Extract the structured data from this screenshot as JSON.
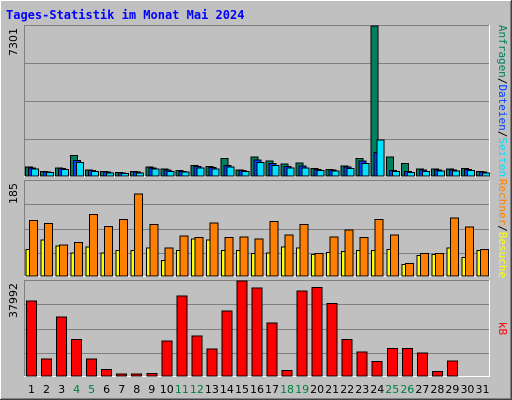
{
  "chart_data": {
    "type": "bar",
    "title": "Tages-Statistik im Monat Mai 2024",
    "categories": [
      "1",
      "2",
      "3",
      "4",
      "5",
      "6",
      "7",
      "8",
      "9",
      "10",
      "11",
      "12",
      "13",
      "14",
      "15",
      "16",
      "17",
      "18",
      "19",
      "20",
      "21",
      "22",
      "23",
      "24",
      "25",
      "26",
      "27",
      "28",
      "29",
      "30",
      "31"
    ],
    "weekend_days": [
      "4",
      "5",
      "11",
      "12",
      "18",
      "19",
      "25",
      "26"
    ],
    "colors": {
      "title": "#0000FF",
      "anfragen": "#008060",
      "dateien": "#0040FF",
      "seiten": "#00E0FF",
      "besuche": "#FFFF00",
      "rechner": "#FF8000",
      "kb": "#FF0000",
      "weekday_tick": "#000000",
      "weekend_tick": "#008040",
      "plot_background": "#C0C0C0",
      "gridline": "#808080"
    },
    "panels": [
      {
        "id": "hits",
        "ymax_label": "7301",
        "ylim": [
          0,
          7301
        ],
        "legend": [
          {
            "text": "Anfragen",
            "color": "#008060"
          },
          {
            "text": "/",
            "color": "#000000"
          },
          {
            "text": "Dateien",
            "color": "#0040FF"
          },
          {
            "text": "/",
            "color": "#000000"
          },
          {
            "text": "Seiten",
            "color": "#00E0FF"
          }
        ],
        "series": [
          {
            "name": "Anfragen",
            "color": "#008060",
            "values": [
              440,
              230,
              400,
              1000,
              300,
              220,
              170,
              230,
              450,
              330,
              270,
              520,
              470,
              860,
              300,
              920,
              730,
              580,
              640,
              360,
              320,
              490,
              860,
              7301,
              920,
              620,
              330,
              350,
              330,
              370,
              230
            ]
          },
          {
            "name": "Dateien",
            "color": "#0040FF",
            "values": [
              400,
              200,
              370,
              750,
              260,
              190,
              150,
              200,
              390,
              280,
              230,
              460,
              420,
              520,
              260,
              770,
              620,
              460,
              480,
              310,
              280,
              430,
              740,
              1150,
              260,
              210,
              280,
              300,
              290,
              320,
              200
            ]
          },
          {
            "name": "Seiten",
            "color": "#00E0FF",
            "values": [
              350,
              160,
              320,
              650,
              220,
              150,
              110,
              150,
              330,
              230,
              190,
              400,
              350,
              440,
              210,
              650,
              520,
              380,
              380,
              260,
              240,
              370,
              620,
              1750,
              210,
              160,
              230,
              250,
              240,
              270,
              150
            ]
          }
        ]
      },
      {
        "id": "visits",
        "ymax_label": "185",
        "ylim": [
          0,
          185
        ],
        "legend": [
          {
            "text": "Rechner",
            "color": "#FF8000"
          },
          {
            "text": "/",
            "color": "#000000"
          },
          {
            "text": "Besuche",
            "color": "#FFFF00"
          }
        ],
        "series": [
          {
            "name": "Besuche",
            "color": "#FFFF00",
            "values": [
              52,
              70,
              58,
              45,
              56,
              45,
              50,
              50,
              55,
              30,
              50,
              72,
              70,
              50,
              50,
              44,
              45,
              56,
              55,
              42,
              46,
              48,
              50,
              50,
              52,
              22,
              40,
              42,
              55,
              36,
              50
            ]
          },
          {
            "name": "Rechner",
            "color": "#FF8000",
            "values": [
              108,
              102,
              60,
              65,
              120,
              96,
              110,
              160,
              100,
              55,
              78,
              75,
              103,
              75,
              76,
              72,
              106,
              80,
              100,
              44,
              76,
              90,
              75,
              110,
              80,
              24,
              44,
              44,
              113,
              95,
              52
            ]
          }
        ]
      },
      {
        "id": "kb",
        "ymax_label": "37992",
        "ylim": [
          0,
          37992
        ],
        "legend": [
          {
            "text": "kB",
            "color": "#FF0000"
          }
        ],
        "series": [
          {
            "name": "kB",
            "color": "#FF0000",
            "values": [
              30000,
              6800,
              23600,
              14600,
              6800,
              2600,
              800,
              800,
              1000,
              14000,
              32000,
              16000,
              10800,
              26000,
              37992,
              35200,
              21200,
              2200,
              34000,
              35400,
              29000,
              14600,
              9600,
              5800,
              11000,
              11000,
              9200,
              1800,
              6000,
              0,
              0
            ]
          }
        ]
      }
    ]
  }
}
